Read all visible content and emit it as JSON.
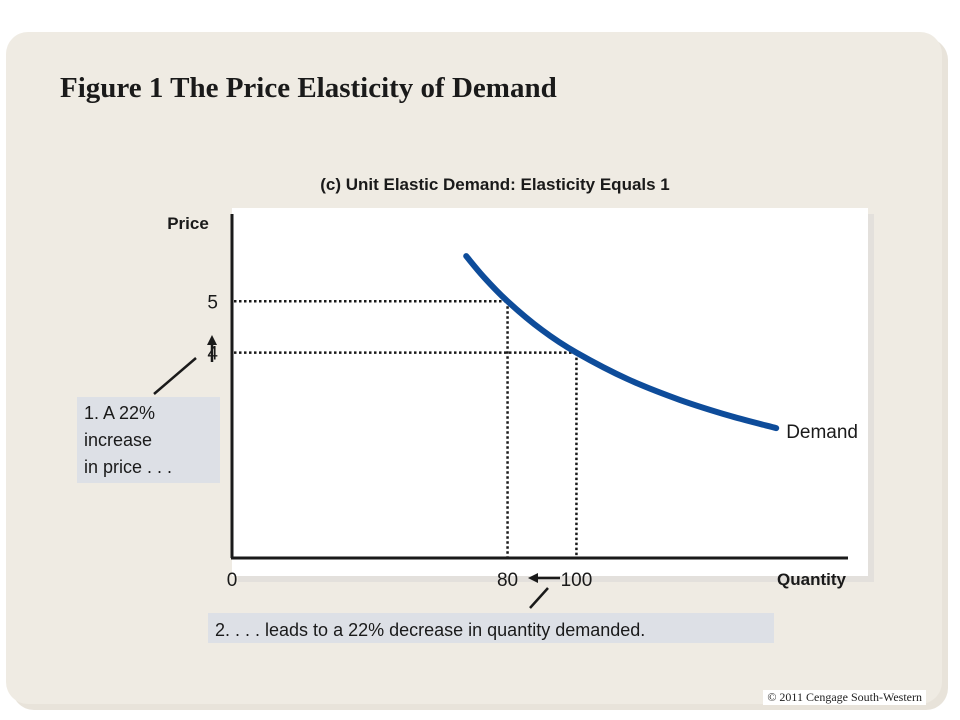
{
  "slide": {
    "title": "Figure 1 The Price Elasticity of Demand",
    "copyright": "© 2011  Cengage South-Western"
  },
  "colors": {
    "background": "#efebe3",
    "plot_area": "#ffffff",
    "demand_curve": "#0e4c9a",
    "callout_box": "#dde0e6"
  },
  "chart_data": {
    "type": "line",
    "title": "(c) Unit Elastic Demand: Elasticity Equals 1",
    "xlabel": "Quantity",
    "ylabel": "Price",
    "xlim": [
      0,
      180
    ],
    "ylim": [
      0,
      6.7
    ],
    "series": [
      {
        "name": "Demand",
        "x": [
          68,
          73,
          80,
          90,
          100,
          115,
          130,
          145,
          158
        ],
        "y": [
          5.88,
          5.48,
          5.0,
          4.44,
          4.0,
          3.48,
          3.08,
          2.76,
          2.53
        ]
      }
    ],
    "x_ticks": [
      {
        "value": 0,
        "label": "0"
      },
      {
        "value": 80,
        "label": "80"
      },
      {
        "value": 100,
        "label": "100"
      }
    ],
    "y_ticks": [
      {
        "value": 5,
        "label": "5"
      },
      {
        "value": 4,
        "label": "4"
      }
    ],
    "guide_points": [
      {
        "x": 80,
        "y": 5
      },
      {
        "x": 100,
        "y": 4
      }
    ],
    "series_label": "Demand",
    "annotations": {
      "price_change": [
        "1. A 22%",
        "increase",
        "in price . . ."
      ],
      "quantity_change": "2. . . . leads to a 22% decrease in quantity demanded."
    }
  }
}
